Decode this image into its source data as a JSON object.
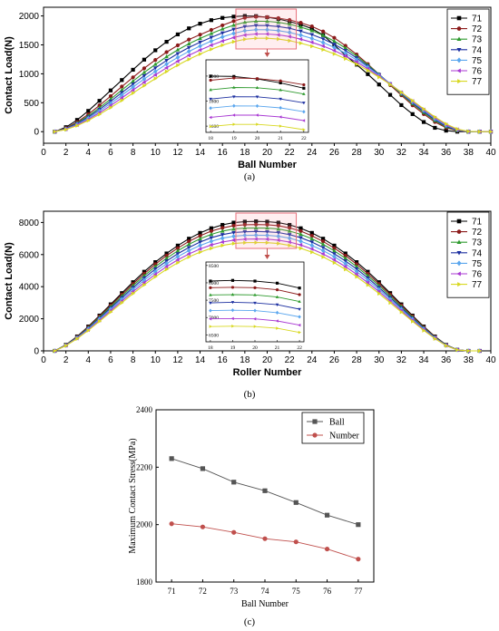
{
  "panels": {
    "a": {
      "label": "(a)"
    },
    "b": {
      "label": "(b)"
    },
    "c": {
      "label": "(c)"
    }
  },
  "chart_data": [
    {
      "type": "line",
      "panel": "a",
      "xlabel": "Ball Number",
      "ylabel": "Contact Load(N)",
      "xlim": [
        0,
        40
      ],
      "ylim": [
        -200,
        2150
      ],
      "xticks": [
        0,
        2,
        4,
        6,
        8,
        10,
        12,
        14,
        16,
        18,
        20,
        22,
        24,
        26,
        28,
        30,
        32,
        34,
        36,
        38,
        40
      ],
      "yticks": [
        0,
        500,
        1000,
        1500,
        2000
      ],
      "legend_position": "top-right",
      "x": [
        1,
        2,
        3,
        4,
        5,
        6,
        7,
        8,
        9,
        10,
        11,
        12,
        13,
        14,
        15,
        16,
        17,
        18,
        19,
        20,
        21,
        22,
        23,
        24,
        25,
        26,
        27,
        28,
        29,
        30,
        31,
        32,
        33,
        34,
        35,
        36,
        37,
        38,
        39,
        40
      ],
      "series": [
        {
          "name": "71",
          "color": "#000000",
          "marker": "square",
          "values": [
            0,
            78,
            203,
            359,
            533,
            713,
            892,
            1070,
            1245,
            1407,
            1553,
            1681,
            1785,
            1866,
            1927,
            1966,
            1988,
            2000,
            1997,
            1977,
            1946,
            1903,
            1850,
            1780,
            1669,
            1497,
            1323,
            1159,
            994,
            815,
            636,
            459,
            304,
            167,
            67,
            18,
            0,
            0,
            0,
            0
          ]
        },
        {
          "name": "72",
          "color": "#8b1a1a",
          "marker": "circle",
          "values": [
            0,
            62,
            167,
            300,
            454,
            614,
            779,
            939,
            1095,
            1239,
            1374,
            1492,
            1592,
            1677,
            1758,
            1838,
            1910,
            1967,
            1985,
            1980,
            1962,
            1931,
            1882,
            1820,
            1732,
            1622,
            1485,
            1334,
            1170,
            990,
            805,
            629,
            456,
            304,
            167,
            69,
            17,
            0,
            0,
            0
          ]
        },
        {
          "name": "73",
          "color": "#2e9a2e",
          "marker": "triangle-up",
          "values": [
            0,
            55,
            150,
            271,
            414,
            563,
            720,
            873,
            1023,
            1163,
            1295,
            1414,
            1519,
            1611,
            1696,
            1774,
            1840,
            1890,
            1909,
            1907,
            1889,
            1857,
            1807,
            1746,
            1665,
            1564,
            1445,
            1305,
            1153,
            992,
            820,
            648,
            482,
            329,
            190,
            84,
            22,
            0,
            0,
            0
          ]
        },
        {
          "name": "74",
          "color": "#1c2fa0",
          "marker": "triangle-down",
          "values": [
            0,
            50,
            138,
            251,
            384,
            525,
            674,
            822,
            966,
            1102,
            1231,
            1349,
            1454,
            1546,
            1630,
            1706,
            1769,
            1817,
            1835,
            1834,
            1817,
            1786,
            1737,
            1678,
            1603,
            1510,
            1402,
            1275,
            1135,
            986,
            826,
            661,
            499,
            347,
            206,
            95,
            26,
            0,
            0,
            0
          ]
        },
        {
          "name": "75",
          "color": "#5aa6ee",
          "marker": "diamond",
          "values": [
            0,
            45,
            126,
            231,
            355,
            488,
            630,
            771,
            910,
            1041,
            1167,
            1283,
            1387,
            1479,
            1564,
            1637,
            1698,
            1744,
            1762,
            1761,
            1746,
            1715,
            1668,
            1611,
            1541,
            1456,
            1356,
            1240,
            1113,
            975,
            826,
            671,
            514,
            365,
            223,
            108,
            32,
            2,
            0,
            0
          ]
        },
        {
          "name": "76",
          "color": "#a93ad3",
          "marker": "triangle-left",
          "values": [
            0,
            41,
            115,
            212,
            327,
            451,
            584,
            719,
            853,
            981,
            1103,
            1216,
            1319,
            1411,
            1494,
            1566,
            1626,
            1670,
            1688,
            1688,
            1673,
            1644,
            1598,
            1544,
            1480,
            1401,
            1308,
            1203,
            1087,
            959,
            823,
            678,
            527,
            380,
            240,
            121,
            38,
            3,
            0,
            0
          ]
        },
        {
          "name": "77",
          "color": "#d8d821",
          "marker": "triangle-right",
          "values": [
            0,
            36,
            104,
            193,
            299,
            415,
            540,
            667,
            795,
            919,
            1039,
            1149,
            1250,
            1342,
            1424,
            1495,
            1554,
            1597,
            1614,
            1614,
            1600,
            1572,
            1529,
            1476,
            1417,
            1344,
            1260,
            1166,
            1059,
            942,
            816,
            681,
            538,
            392,
            253,
            134,
            45,
            5,
            0,
            0
          ]
        }
      ],
      "inset": {
        "xlim": [
          17.8,
          22.2
        ],
        "ylim": [
          1550,
          2130
        ],
        "xticks": [
          18,
          19,
          20,
          21,
          22
        ],
        "yticks": [
          1600,
          1800,
          2000
        ]
      }
    },
    {
      "type": "line",
      "panel": "b",
      "xlabel": "Roller Number",
      "ylabel": "Contact Load(N)",
      "xlim": [
        0,
        40
      ],
      "ylim": [
        0,
        8700
      ],
      "xticks": [
        0,
        2,
        4,
        6,
        8,
        10,
        12,
        14,
        16,
        18,
        20,
        22,
        24,
        26,
        28,
        30,
        32,
        34,
        36,
        38,
        40
      ],
      "yticks": [
        0,
        2000,
        4000,
        6000,
        8000
      ],
      "legend_position": "top-right",
      "x": [
        1,
        2,
        3,
        4,
        5,
        6,
        7,
        8,
        9,
        10,
        11,
        12,
        13,
        14,
        15,
        16,
        17,
        18,
        19,
        20,
        21,
        22,
        23,
        24,
        25,
        26,
        27,
        28,
        29,
        30,
        31,
        32,
        33,
        34,
        35,
        36,
        37,
        38,
        39
      ],
      "series": [
        {
          "name": "71",
          "color": "#000000",
          "marker": "square",
          "values": [
            0,
            380,
            900,
            1520,
            2200,
            2900,
            3600,
            4280,
            4930,
            5530,
            6070,
            6560,
            6990,
            7350,
            7640,
            7850,
            7990,
            8050,
            8070,
            8050,
            7990,
            7850,
            7640,
            7350,
            6990,
            6560,
            6070,
            5530,
            4930,
            4280,
            3600,
            2900,
            2200,
            1520,
            900,
            380,
            70,
            0,
            0
          ]
        },
        {
          "name": "72",
          "color": "#8b1a1a",
          "marker": "circle",
          "values": [
            0,
            370,
            880,
            1480,
            2150,
            2830,
            3510,
            4170,
            4810,
            5400,
            5930,
            6400,
            6820,
            7170,
            7460,
            7660,
            7800,
            7860,
            7870,
            7860,
            7800,
            7660,
            7460,
            7170,
            6820,
            6400,
            5930,
            5400,
            4810,
            4170,
            3510,
            2830,
            2150,
            1480,
            880,
            370,
            68,
            0,
            0
          ]
        },
        {
          "name": "73",
          "color": "#2e9a2e",
          "marker": "triangle-up",
          "values": [
            0,
            360,
            855,
            1440,
            2090,
            2750,
            3410,
            4060,
            4680,
            5250,
            5770,
            6230,
            6640,
            6980,
            7260,
            7460,
            7590,
            7650,
            7660,
            7650,
            7590,
            7460,
            7260,
            6980,
            6640,
            6230,
            5770,
            5250,
            4680,
            4060,
            3410,
            2750,
            2090,
            1440,
            855,
            360,
            66,
            0,
            0
          ]
        },
        {
          "name": "74",
          "color": "#1c2fa0",
          "marker": "triangle-down",
          "values": [
            0,
            350,
            830,
            1400,
            2030,
            2670,
            3310,
            3940,
            4540,
            5100,
            5600,
            6050,
            6440,
            6780,
            7050,
            7240,
            7370,
            7420,
            7440,
            7420,
            7370,
            7240,
            7050,
            6780,
            6440,
            6050,
            5600,
            5100,
            4540,
            3940,
            3310,
            2670,
            2030,
            1400,
            830,
            350,
            64,
            0,
            0
          ]
        },
        {
          "name": "75",
          "color": "#5aa6ee",
          "marker": "diamond",
          "values": [
            0,
            340,
            805,
            1360,
            1970,
            2590,
            3210,
            3820,
            4400,
            4940,
            5430,
            5870,
            6250,
            6570,
            6830,
            7020,
            7140,
            7200,
            7210,
            7200,
            7140,
            7020,
            6830,
            6570,
            6250,
            5870,
            5430,
            4940,
            4400,
            3820,
            3210,
            2590,
            1970,
            1360,
            805,
            340,
            62,
            0,
            0
          ]
        },
        {
          "name": "76",
          "color": "#a93ad3",
          "marker": "triangle-left",
          "values": [
            0,
            330,
            780,
            1310,
            1900,
            2500,
            3100,
            3690,
            4250,
            4770,
            5250,
            5670,
            6040,
            6350,
            6600,
            6780,
            6900,
            6960,
            6970,
            6960,
            6900,
            6780,
            6600,
            6350,
            6040,
            5670,
            5250,
            4770,
            4250,
            3690,
            3100,
            2500,
            1900,
            1310,
            780,
            330,
            60,
            0,
            0
          ]
        },
        {
          "name": "77",
          "color": "#d8d821",
          "marker": "triangle-right",
          "values": [
            0,
            320,
            755,
            1270,
            1840,
            2420,
            3000,
            3570,
            4110,
            4620,
            5080,
            5490,
            5850,
            6150,
            6390,
            6570,
            6690,
            6740,
            6750,
            6740,
            6690,
            6570,
            6390,
            6150,
            5850,
            5490,
            5080,
            4620,
            4110,
            3570,
            3000,
            2420,
            1840,
            1270,
            755,
            320,
            58,
            0,
            0
          ]
        }
      ],
      "inset": {
        "xlim": [
          17.8,
          22.2
        ],
        "ylim": [
          6300,
          8600
        ],
        "xticks": [
          18,
          19,
          20,
          21,
          22
        ],
        "yticks": [
          6500,
          7000,
          7500,
          8000,
          8500
        ]
      }
    },
    {
      "type": "line",
      "panel": "c",
      "xlabel": "Ball Number",
      "ylabel": "Maximum Contact Stress(MPa)",
      "xlim": [
        70.5,
        77.5
      ],
      "ylim": [
        1800,
        2400
      ],
      "categories": [
        "71",
        "72",
        "73",
        "74",
        "75",
        "76",
        "77"
      ],
      "yticks": [
        1800,
        2000,
        2200,
        2400
      ],
      "legend_position": "top-right",
      "series": [
        {
          "name": "Ball",
          "color": "#555555",
          "marker": "square",
          "values": [
            2230,
            2195,
            2148,
            2118,
            2077,
            2033,
            2000
          ]
        },
        {
          "name": "Number",
          "color": "#c0504d",
          "marker": "circle",
          "values": [
            2003,
            1992,
            1973,
            1951,
            1940,
            1915,
            1880
          ]
        }
      ]
    }
  ]
}
